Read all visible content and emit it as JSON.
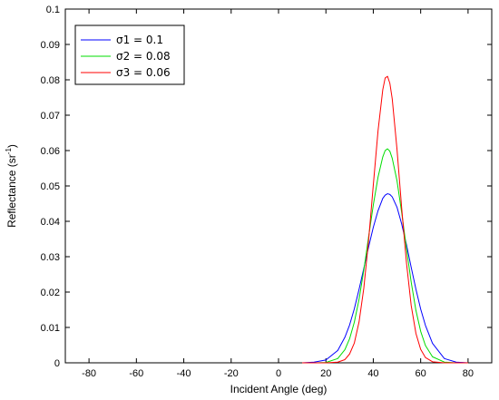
{
  "chart_data": {
    "type": "line",
    "xlabel": "Incident Angle (deg)",
    "ylabel": "Reflectance (sr",
    "ylabel_sup": "-1",
    "ylabel_close": ")",
    "xlim": [
      -90,
      90
    ],
    "ylim": [
      0,
      0.1
    ],
    "x_ticks": [
      -80,
      -60,
      -40,
      -20,
      0,
      20,
      40,
      60,
      80
    ],
    "x_tick_labels": [
      "-80",
      "-60",
      "-40",
      "-20",
      "0",
      "20",
      "40",
      "60",
      "80"
    ],
    "y_ticks": [
      0,
      0.01,
      0.02,
      0.03,
      0.04,
      0.05,
      0.06,
      0.07,
      0.08,
      0.09,
      0.1
    ],
    "y_tick_labels": [
      "0",
      "0.01",
      "0.02",
      "0.03",
      "0.04",
      "0.05",
      "0.06",
      "0.07",
      "0.08",
      "0.09",
      "0.1"
    ],
    "grid": false,
    "legend_position": "top-left",
    "x": [
      10,
      15,
      20,
      25,
      28,
      30,
      32,
      34,
      36,
      38,
      40,
      42,
      44,
      45,
      46,
      47,
      48,
      50,
      52,
      54,
      56,
      58,
      60,
      62,
      65,
      70,
      75,
      80
    ],
    "series": [
      {
        "name": "σ1 = 0.1",
        "color": "#0000ff",
        "values": [
          0,
          0.0002,
          0.0008,
          0.0035,
          0.0072,
          0.0107,
          0.0153,
          0.0208,
          0.0267,
          0.0327,
          0.0383,
          0.043,
          0.0465,
          0.0474,
          0.0478,
          0.0476,
          0.0469,
          0.044,
          0.0392,
          0.0334,
          0.027,
          0.0208,
          0.0152,
          0.0106,
          0.0055,
          0.0012,
          0.0002,
          0
        ]
      },
      {
        "name": "σ2 = 0.08",
        "color": "#00dd00",
        "values": [
          0,
          0,
          0.0001,
          0.0012,
          0.0037,
          0.0068,
          0.0115,
          0.018,
          0.0262,
          0.0355,
          0.0446,
          0.0525,
          0.0582,
          0.06,
          0.0605,
          0.0598,
          0.0578,
          0.0515,
          0.0424,
          0.0323,
          0.0228,
          0.0148,
          0.0089,
          0.0049,
          0.0017,
          0.0002,
          0,
          0
        ]
      },
      {
        "name": "σ3 = 0.06",
        "color": "#ff0000",
        "values": [
          0,
          0,
          0,
          0.0002,
          0.0009,
          0.0025,
          0.0056,
          0.0116,
          0.0211,
          0.0345,
          0.0502,
          0.0656,
          0.0772,
          0.0805,
          0.081,
          0.079,
          0.0746,
          0.0604,
          0.0436,
          0.0283,
          0.0162,
          0.0083,
          0.0038,
          0.0015,
          0.0003,
          0,
          0,
          0
        ]
      }
    ]
  }
}
